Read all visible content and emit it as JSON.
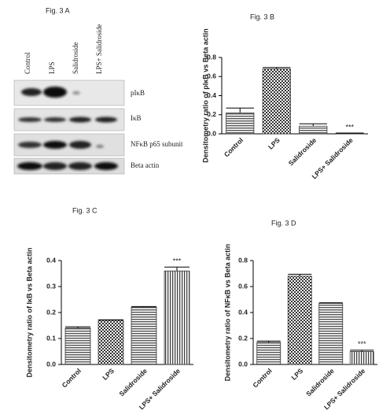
{
  "blot": {
    "title": "Fig. 3 A",
    "lanes": [
      "Control",
      "LPS",
      "Salidroside",
      "LPS+ Salidroside"
    ],
    "rows": [
      "pIκB",
      "IκB",
      "NFκB p65 subunit",
      "Beta actin"
    ]
  },
  "chart_data": [
    {
      "type": "bar",
      "title": "Fig. 3 B",
      "y_label": "Densitometry ratio of pIκB vs Beta actin",
      "categories": [
        "Control",
        "LPS",
        "Salidroside",
        "LPS+ Salidroside"
      ],
      "values": [
        0.22,
        0.68,
        0.08,
        0.005
      ],
      "errors": [
        0.05,
        0.015,
        0.025,
        0.003
      ],
      "value_annotations": [
        null,
        null,
        null,
        "***"
      ],
      "patterns": [
        "hlines",
        "checker",
        "hlines",
        "vlines"
      ],
      "color": "#333333",
      "ylim": [
        0,
        0.8
      ],
      "yticks": [
        {
          "value": 0,
          "label": "0.0"
        },
        0.2,
        0.4,
        0.6,
        0.8
      ]
    },
    {
      "type": "bar",
      "title": "Fig. 3 C",
      "y_label": "Densitometry ratio of IκB vs Beta actin",
      "categories": [
        "Control",
        "LPS",
        "Salidroside",
        "LPS+ Salidroside"
      ],
      "values": [
        0.14,
        0.17,
        0.22,
        0.36
      ],
      "errors": [
        0.005,
        0.002,
        0.003,
        0.015
      ],
      "value_annotations": [
        null,
        null,
        null,
        "***"
      ],
      "patterns": [
        "hlines",
        "checker",
        "hlines",
        "vlines"
      ],
      "color": "#333333",
      "ylim": [
        0,
        0.4
      ],
      "yticks": [
        {
          "value": 0,
          "label": "0.0"
        },
        0.1,
        0.2,
        0.3,
        0.4
      ]
    },
    {
      "type": "bar",
      "title": "Fig. 3 D",
      "y_label": "Densitometry ratio of NFκB vs Beta actin",
      "categories": [
        "Control",
        "LPS",
        "Salidroside",
        "LPS+ Salidroside"
      ],
      "values": [
        0.17,
        0.68,
        0.47,
        0.1
      ],
      "errors": [
        0.01,
        0.015,
        0.005,
        0.01
      ],
      "value_annotations": [
        null,
        null,
        null,
        "***"
      ],
      "patterns": [
        "hlines",
        "checker",
        "hlines",
        "vlines"
      ],
      "color": "#333333",
      "ylim": [
        0,
        0.8
      ],
      "yticks": [
        {
          "value": 0,
          "label": "0.0"
        },
        0.2,
        0.4,
        0.6,
        0.8
      ]
    }
  ]
}
